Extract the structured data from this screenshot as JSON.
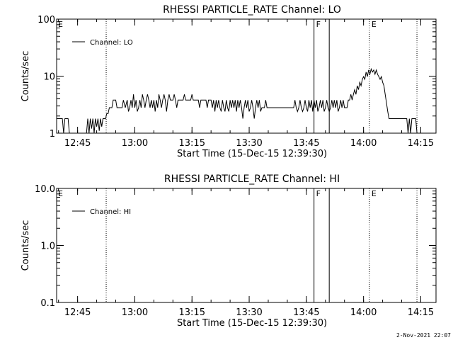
{
  "chart_data": [
    {
      "type": "line",
      "title": "RHESSI PARTICLE_RATE Channel: LO",
      "xlabel": "Start Time (15-Dec-15 12:39:30)",
      "ylabel": "Counts/sec",
      "y_scale": "log",
      "ylim": [
        1,
        100
      ],
      "y_ticks": [
        {
          "value": 1,
          "label": "1"
        },
        {
          "value": 10,
          "label": "10"
        },
        {
          "value": 100,
          "label": "100"
        }
      ],
      "xlim": [
        "12:39:30",
        "14:19:00"
      ],
      "x_ticks": [
        "12:45",
        "13:00",
        "13:15",
        "13:30",
        "13:45",
        "14:00",
        "14:15"
      ],
      "legend": {
        "placement": "top-left",
        "entries": [
          "Channel: LO"
        ]
      },
      "markers": [
        {
          "time": "12:39:30",
          "label": "E",
          "style": "none"
        },
        {
          "time": "12:52:30",
          "label": "",
          "style": "dotted"
        },
        {
          "time": "13:47:00",
          "label": "F",
          "style": "solid"
        },
        {
          "time": "13:51:00",
          "label": "",
          "style": "solid"
        },
        {
          "time": "14:01:30",
          "label": "E",
          "style": "dotted"
        },
        {
          "time": "14:14:00",
          "label": "",
          "style": "dotted"
        }
      ],
      "series": [
        {
          "name": "Channel: LO",
          "points": [
            [
              "12:39:30",
              1.8
            ],
            [
              "12:41:00",
              1.8
            ],
            [
              "12:41:20",
              0.9
            ],
            [
              "12:41:40",
              1.8
            ],
            [
              "12:42:30",
              1.8
            ],
            [
              "12:42:50",
              0.9
            ],
            [
              "12:47:20",
              0.9
            ],
            [
              "12:47:40",
              1.8
            ],
            [
              "12:48:00",
              1.0
            ],
            [
              "12:48:20",
              1.8
            ],
            [
              "12:48:40",
              1.2
            ],
            [
              "12:49:00",
              1.8
            ],
            [
              "12:49:20",
              1.0
            ],
            [
              "12:49:40",
              1.8
            ],
            [
              "12:50:00",
              1.3
            ],
            [
              "12:50:20",
              1.8
            ],
            [
              "12:50:40",
              1.1
            ],
            [
              "12:51:00",
              1.8
            ],
            [
              "12:51:20",
              1.3
            ],
            [
              "12:51:40",
              1.8
            ],
            [
              "12:52:20",
              1.8
            ],
            [
              "12:52:40",
              2.2
            ],
            [
              "12:53:00",
              2.2
            ],
            [
              "12:53:20",
              2.8
            ],
            [
              "12:54:00",
              2.8
            ],
            [
              "12:54:20",
              3.8
            ],
            [
              "12:55:00",
              3.8
            ],
            [
              "12:55:20",
              2.8
            ],
            [
              "12:56:40",
              2.8
            ],
            [
              "12:57:00",
              3.8
            ],
            [
              "12:57:30",
              2.8
            ],
            [
              "12:58:00",
              3.8
            ],
            [
              "12:58:20",
              2.4
            ],
            [
              "12:58:40",
              2.8
            ],
            [
              "12:59:00",
              3.8
            ],
            [
              "12:59:20",
              2.8
            ],
            [
              "12:59:40",
              4.8
            ],
            [
              "13:00:00",
              2.8
            ],
            [
              "13:00:20",
              3.8
            ],
            [
              "13:00:40",
              2.4
            ],
            [
              "13:01:00",
              2.8
            ],
            [
              "13:01:20",
              3.8
            ],
            [
              "13:01:40",
              2.8
            ],
            [
              "13:02:00",
              4.8
            ],
            [
              "13:02:20",
              3.8
            ],
            [
              "13:02:40",
              2.8
            ],
            [
              "13:03:00",
              3.8
            ],
            [
              "13:03:20",
              4.8
            ],
            [
              "13:03:40",
              3.8
            ],
            [
              "13:04:00",
              2.8
            ],
            [
              "13:04:20",
              3.8
            ],
            [
              "13:04:40",
              2.8
            ],
            [
              "13:05:00",
              3.8
            ],
            [
              "13:05:20",
              2.4
            ],
            [
              "13:05:40",
              3.8
            ],
            [
              "13:06:00",
              2.8
            ],
            [
              "13:06:20",
              4.8
            ],
            [
              "13:06:40",
              3.8
            ],
            [
              "13:07:00",
              2.8
            ],
            [
              "13:07:20",
              3.8
            ],
            [
              "13:07:40",
              4.8
            ],
            [
              "13:08:00",
              3.8
            ],
            [
              "13:08:20",
              2.4
            ],
            [
              "13:08:40",
              3.8
            ],
            [
              "13:09:00",
              4.8
            ],
            [
              "13:09:20",
              3.8
            ],
            [
              "13:10:00",
              3.8
            ],
            [
              "13:10:20",
              4.8
            ],
            [
              "13:10:40",
              3.8
            ],
            [
              "13:11:00",
              2.8
            ],
            [
              "13:11:20",
              3.8
            ],
            [
              "13:12:40",
              3.8
            ],
            [
              "13:13:00",
              4.8
            ],
            [
              "13:13:20",
              3.8
            ],
            [
              "13:14:40",
              3.8
            ],
            [
              "13:15:00",
              4.8
            ],
            [
              "13:15:20",
              3.8
            ],
            [
              "13:16:40",
              3.8
            ],
            [
              "13:17:00",
              2.8
            ],
            [
              "13:17:20",
              3.8
            ],
            [
              "13:18:40",
              3.8
            ],
            [
              "13:19:00",
              2.8
            ],
            [
              "13:19:20",
              3.8
            ],
            [
              "13:20:00",
              3.8
            ],
            [
              "13:20:20",
              2.8
            ],
            [
              "13:20:40",
              3.8
            ],
            [
              "13:21:00",
              2.4
            ],
            [
              "13:21:20",
              3.8
            ],
            [
              "13:21:40",
              2.8
            ],
            [
              "13:22:00",
              3.8
            ],
            [
              "13:22:20",
              2.8
            ],
            [
              "13:22:40",
              2.4
            ],
            [
              "13:23:00",
              3.8
            ],
            [
              "13:23:20",
              2.8
            ],
            [
              "13:23:40",
              2.4
            ],
            [
              "13:24:00",
              3.8
            ],
            [
              "13:24:20",
              2.8
            ],
            [
              "13:24:40",
              2.4
            ],
            [
              "13:25:00",
              3.8
            ],
            [
              "13:25:20",
              2.8
            ],
            [
              "13:25:40",
              3.8
            ],
            [
              "13:26:00",
              2.8
            ],
            [
              "13:26:20",
              3.8
            ],
            [
              "13:26:40",
              2.4
            ],
            [
              "13:27:00",
              3.8
            ],
            [
              "13:27:20",
              2.8
            ],
            [
              "13:27:40",
              3.8
            ],
            [
              "13:28:00",
              2.8
            ],
            [
              "13:28:20",
              1.8
            ],
            [
              "13:28:40",
              2.8
            ],
            [
              "13:29:00",
              3.8
            ],
            [
              "13:29:20",
              2.8
            ],
            [
              "13:29:40",
              3.8
            ],
            [
              "13:30:00",
              2.4
            ],
            [
              "13:30:20",
              2.8
            ],
            [
              "13:30:40",
              3.8
            ],
            [
              "13:31:00",
              2.8
            ],
            [
              "13:31:20",
              1.8
            ],
            [
              "13:31:40",
              2.8
            ],
            [
              "13:32:00",
              3.8
            ],
            [
              "13:32:20",
              2.8
            ],
            [
              "13:32:40",
              3.8
            ],
            [
              "13:33:00",
              2.4
            ],
            [
              "13:33:20",
              2.8
            ],
            [
              "13:34:00",
              2.8
            ],
            [
              "13:34:20",
              3.8
            ],
            [
              "13:34:40",
              2.8
            ],
            [
              "13:41:40",
              2.8
            ],
            [
              "13:42:00",
              3.8
            ],
            [
              "13:42:20",
              2.8
            ],
            [
              "13:42:40",
              2.4
            ],
            [
              "13:43:00",
              2.8
            ],
            [
              "13:43:20",
              3.8
            ],
            [
              "13:43:40",
              2.8
            ],
            [
              "13:44:00",
              2.4
            ],
            [
              "13:44:20",
              2.8
            ],
            [
              "13:44:40",
              3.8
            ],
            [
              "13:45:00",
              2.8
            ],
            [
              "13:45:20",
              2.4
            ],
            [
              "13:45:40",
              3.8
            ],
            [
              "13:46:00",
              2.8
            ],
            [
              "13:46:20",
              3.8
            ],
            [
              "13:46:40",
              2.4
            ],
            [
              "13:47:00",
              3.8
            ],
            [
              "13:47:20",
              2.8
            ],
            [
              "13:47:40",
              3.8
            ],
            [
              "13:48:00",
              2.4
            ],
            [
              "13:48:20",
              2.8
            ],
            [
              "13:48:40",
              3.8
            ],
            [
              "13:49:00",
              2.8
            ],
            [
              "13:49:20",
              3.8
            ],
            [
              "13:49:40",
              2.4
            ],
            [
              "13:50:00",
              2.8
            ],
            [
              "13:50:20",
              3.8
            ],
            [
              "13:50:40",
              2.8
            ],
            [
              "13:51:00",
              2.4
            ],
            [
              "13:51:20",
              2.8
            ],
            [
              "13:51:40",
              3.8
            ],
            [
              "13:52:00",
              2.8
            ],
            [
              "13:52:20",
              3.8
            ],
            [
              "13:52:40",
              2.8
            ],
            [
              "13:53:00",
              3.8
            ],
            [
              "13:53:20",
              2.4
            ],
            [
              "13:53:40",
              2.8
            ],
            [
              "13:54:00",
              3.8
            ],
            [
              "13:54:20",
              2.8
            ],
            [
              "13:54:40",
              3.8
            ],
            [
              "13:55:00",
              2.8
            ],
            [
              "13:55:40",
              2.8
            ],
            [
              "13:56:00",
              3.8
            ],
            [
              "13:56:20",
              3.8
            ],
            [
              "13:56:40",
              4.8
            ],
            [
              "13:57:00",
              3.8
            ],
            [
              "13:57:20",
              4.8
            ],
            [
              "13:57:40",
              5.8
            ],
            [
              "13:58:00",
              4.8
            ],
            [
              "13:58:20",
              6.8
            ],
            [
              "13:58:40",
              5.8
            ],
            [
              "13:59:00",
              7.8
            ],
            [
              "13:59:20",
              6.8
            ],
            [
              "13:59:40",
              8.8
            ],
            [
              "14:00:00",
              9.8
            ],
            [
              "14:00:20",
              8.8
            ],
            [
              "14:00:40",
              11.8
            ],
            [
              "14:01:00",
              9.8
            ],
            [
              "14:01:20",
              12.8
            ],
            [
              "14:01:40",
              10.8
            ],
            [
              "14:02:00",
              13.3
            ],
            [
              "14:02:20",
              11.8
            ],
            [
              "14:02:40",
              12.8
            ],
            [
              "14:03:00",
              10.8
            ],
            [
              "14:03:20",
              12.8
            ],
            [
              "14:03:40",
              10.8
            ],
            [
              "14:04:00",
              9.8
            ],
            [
              "14:04:20",
              8.8
            ],
            [
              "14:04:40",
              9.8
            ],
            [
              "14:05:00",
              7.8
            ],
            [
              "14:05:20",
              6.8
            ],
            [
              "14:05:40",
              4.8
            ],
            [
              "14:06:00",
              3.4
            ],
            [
              "14:06:20",
              2.4
            ],
            [
              "14:06:40",
              1.8
            ],
            [
              "14:11:20",
              1.8
            ],
            [
              "14:11:40",
              0.9
            ],
            [
              "14:12:00",
              1.8
            ],
            [
              "14:12:20",
              0.9
            ],
            [
              "14:12:40",
              1.8
            ],
            [
              "14:13:40",
              1.8
            ],
            [
              "14:14:00",
              0.9
            ]
          ]
        }
      ]
    },
    {
      "type": "line",
      "title": "RHESSI PARTICLE_RATE Channel: HI",
      "xlabel": "Start Time (15-Dec-15 12:39:30)",
      "ylabel": "Counts/sec",
      "y_scale": "log",
      "ylim": [
        0.1,
        10
      ],
      "y_ticks": [
        {
          "value": 0.1,
          "label": "0.1"
        },
        {
          "value": 1,
          "label": "1.0"
        },
        {
          "value": 10,
          "label": "10.0"
        }
      ],
      "xlim": [
        "12:39:30",
        "14:19:00"
      ],
      "x_ticks": [
        "12:45",
        "13:00",
        "13:15",
        "13:30",
        "13:45",
        "14:00",
        "14:15"
      ],
      "legend": {
        "placement": "top-left",
        "entries": [
          "Channel: HI"
        ]
      },
      "markers": [
        {
          "time": "12:39:30",
          "label": "E",
          "style": "none"
        },
        {
          "time": "12:52:30",
          "label": "",
          "style": "dotted"
        },
        {
          "time": "13:47:00",
          "label": "F",
          "style": "solid"
        },
        {
          "time": "13:51:00",
          "label": "",
          "style": "solid"
        },
        {
          "time": "14:01:30",
          "label": "E",
          "style": "dotted"
        },
        {
          "time": "14:14:00",
          "label": "",
          "style": "dotted"
        }
      ],
      "series": [
        {
          "name": "Channel: HI",
          "points": []
        }
      ]
    }
  ],
  "footer": {
    "timestamp": "2-Nov-2021 22:07"
  }
}
